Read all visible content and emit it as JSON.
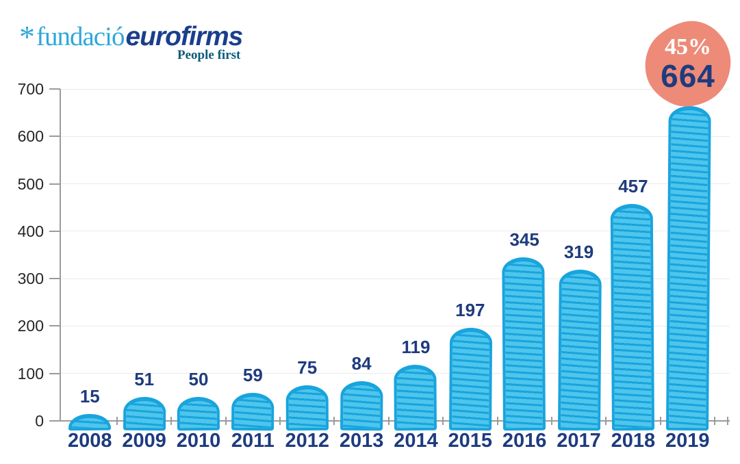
{
  "logo": {
    "asterisk": "*",
    "name_light": "fundació",
    "name_bold": "eurofirms",
    "tagline": "People first"
  },
  "badge": {
    "percent": "45%",
    "value": "664"
  },
  "colors": {
    "logo_blue": "#2FA7DA",
    "brand_navy": "#1B3E8C",
    "tagline_teal": "#0B5B7A",
    "bar_fill": "#4EC5EC",
    "bar_stroke": "#18A4DD",
    "label_navy": "#1E3B7E",
    "badge_bg": "#ED8B78",
    "badge_percent": "#FFFFFF",
    "axis_gray": "#9B9B9B",
    "gridline": "#EBEBEB",
    "ytick_label": "#262626"
  },
  "chart_data": {
    "type": "bar",
    "title": "",
    "xlabel": "",
    "ylabel": "",
    "categories": [
      "2008",
      "2009",
      "2010",
      "2011",
      "2012",
      "2013",
      "2014",
      "2015",
      "2016",
      "2017",
      "2018",
      "2019"
    ],
    "values": [
      15,
      51,
      50,
      59,
      75,
      84,
      119,
      197,
      345,
      319,
      457,
      664
    ],
    "bar_labels": [
      "15",
      "51",
      "50",
      "59",
      "75",
      "84",
      "119",
      "197",
      "345",
      "319",
      "457",
      ""
    ],
    "ylim": [
      0,
      700
    ],
    "yticks": [
      0,
      100,
      200,
      300,
      400,
      500,
      600,
      700
    ],
    "grid": true,
    "legend": "none",
    "note_badge_shows_last_value": "664"
  }
}
